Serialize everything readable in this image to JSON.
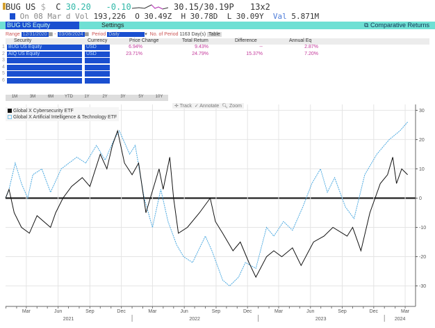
{
  "quote": {
    "ticker": "BUG US",
    "currency": "$",
    "last_label": "C",
    "last": "30.20",
    "change": "-0.10",
    "bid_ask": "30.15/30.19P",
    "size": "13x2",
    "date_line": "On 08 Mar d",
    "vol_label": "Vol",
    "vol": "193,226",
    "open": "O 30.49Z",
    "high": "H 30.78D",
    "low": "L 30.09Y",
    "val_label": "Val",
    "val": "5.871M"
  },
  "bar": {
    "security": "BUG US Equity",
    "settings": "Settings",
    "title": "Comparative Returns"
  },
  "range": {
    "label": "Range",
    "start": "12/31/2020",
    "end": "03/08/2024",
    "period_label": "Period",
    "period": "Daily",
    "num_label": "No. of Period",
    "num": "1163 Day(s)",
    "table_btn": "Table"
  },
  "table": {
    "headers": [
      "Security",
      "Currency",
      "Price Change",
      "Total Return",
      "Difference",
      "Annual Eq"
    ],
    "rows": [
      {
        "n": "1",
        "security": "BUG US Equity",
        "currency": "USD",
        "price_change": "6.94%",
        "total_return": "9.43%",
        "difference": "--",
        "annual_eq": "2.87%"
      },
      {
        "n": "2",
        "security": "AIQ US Equity",
        "currency": "USD",
        "price_change": "23.71%",
        "total_return": "24.79%",
        "difference": "15.37%",
        "annual_eq": "7.20%"
      },
      {
        "n": "3"
      },
      {
        "n": "4"
      },
      {
        "n": "5"
      },
      {
        "n": "6"
      }
    ]
  },
  "periods": [
    "1M",
    "3M",
    "6M",
    "YTD",
    "1Y",
    "2Y",
    "3Y",
    "5Y",
    "10Y"
  ],
  "tools": {
    "track": "Track",
    "annotate": "Annotate",
    "zoom": "Zoom"
  },
  "chart_data": {
    "type": "line",
    "ylim": [
      -37,
      32
    ],
    "yticks": [
      30,
      20,
      10,
      0,
      -10,
      -20,
      -30
    ],
    "xlim": [
      "2020-12-31",
      "2024-03-31"
    ],
    "xticks": [
      "Mar",
      "Jun",
      "Sep",
      "Dec",
      "Mar",
      "Jun",
      "Sep",
      "Dec",
      "Mar",
      "Jun",
      "Sep",
      "Dec",
      "Mar"
    ],
    "years": [
      "2021",
      "2022",
      "2023",
      "2024"
    ],
    "legend_position": "top-left",
    "series": [
      {
        "name": "Global X Cybersecurity ETF",
        "color": "#111111",
        "points": [
          [
            "2020-12-31",
            0
          ],
          [
            "2021-01-10",
            3
          ],
          [
            "2021-01-25",
            -5
          ],
          [
            "2021-02-15",
            -10
          ],
          [
            "2021-03-10",
            -12
          ],
          [
            "2021-04-01",
            -6
          ],
          [
            "2021-05-10",
            -10
          ],
          [
            "2021-05-25",
            -5
          ],
          [
            "2021-06-15",
            0
          ],
          [
            "2021-07-10",
            4
          ],
          [
            "2021-08-10",
            7
          ],
          [
            "2021-09-01",
            4
          ],
          [
            "2021-10-01",
            15
          ],
          [
            "2021-10-20",
            10
          ],
          [
            "2021-11-05",
            18
          ],
          [
            "2021-11-20",
            23
          ],
          [
            "2021-12-10",
            12
          ],
          [
            "2022-01-01",
            8
          ],
          [
            "2022-01-20",
            12
          ],
          [
            "2022-02-10",
            -5
          ],
          [
            "2022-03-20",
            10
          ],
          [
            "2022-04-01",
            3
          ],
          [
            "2022-04-20",
            14
          ],
          [
            "2022-05-01",
            0
          ],
          [
            "2022-05-15",
            -12
          ],
          [
            "2022-06-10",
            -10
          ],
          [
            "2022-07-15",
            -5
          ],
          [
            "2022-08-15",
            0
          ],
          [
            "2022-08-30",
            -8
          ],
          [
            "2022-09-20",
            -12
          ],
          [
            "2022-10-20",
            -18
          ],
          [
            "2022-11-10",
            -15
          ],
          [
            "2022-12-05",
            -22
          ],
          [
            "2022-12-25",
            -27
          ],
          [
            "2023-01-25",
            -20
          ],
          [
            "2023-02-15",
            -18
          ],
          [
            "2023-03-10",
            -20
          ],
          [
            "2023-04-10",
            -17
          ],
          [
            "2023-05-05",
            -23
          ],
          [
            "2023-06-10",
            -15
          ],
          [
            "2023-07-10",
            -13
          ],
          [
            "2023-08-05",
            -10
          ],
          [
            "2023-09-15",
            -13
          ],
          [
            "2023-10-01",
            -10
          ],
          [
            "2023-10-25",
            -18
          ],
          [
            "2023-11-20",
            -5
          ],
          [
            "2023-12-20",
            5
          ],
          [
            "2024-01-10",
            8
          ],
          [
            "2024-01-25",
            14
          ],
          [
            "2024-02-05",
            5
          ],
          [
            "2024-02-20",
            10
          ],
          [
            "2024-03-08",
            8
          ]
        ]
      },
      {
        "name": "Global X Artificial Intelligence & Technology ETF",
        "color": "#4aa8e0",
        "points": [
          [
            "2020-12-31",
            0
          ],
          [
            "2021-01-10",
            3
          ],
          [
            "2021-01-28",
            12
          ],
          [
            "2021-02-15",
            5
          ],
          [
            "2021-03-05",
            0
          ],
          [
            "2021-03-20",
            8
          ],
          [
            "2021-04-15",
            10
          ],
          [
            "2021-05-10",
            2
          ],
          [
            "2021-06-10",
            10
          ],
          [
            "2021-07-25",
            14
          ],
          [
            "2021-08-20",
            12
          ],
          [
            "2021-09-20",
            18
          ],
          [
            "2021-10-15",
            13
          ],
          [
            "2021-11-10",
            20
          ],
          [
            "2021-11-25",
            23
          ],
          [
            "2021-12-25",
            15
          ],
          [
            "2022-01-10",
            18
          ],
          [
            "2022-02-05",
            0
          ],
          [
            "2022-03-01",
            -10
          ],
          [
            "2022-03-25",
            3
          ],
          [
            "2022-04-15",
            -8
          ],
          [
            "2022-05-10",
            -16
          ],
          [
            "2022-05-30",
            -20
          ],
          [
            "2022-06-25",
            -22
          ],
          [
            "2022-08-01",
            -13
          ],
          [
            "2022-08-20",
            -18
          ],
          [
            "2022-09-20",
            -28
          ],
          [
            "2022-10-10",
            -30
          ],
          [
            "2022-11-05",
            -27
          ],
          [
            "2022-11-25",
            -22
          ],
          [
            "2022-12-25",
            -24
          ],
          [
            "2023-01-25",
            -10
          ],
          [
            "2023-02-15",
            -13
          ],
          [
            "2023-03-15",
            -8
          ],
          [
            "2023-04-10",
            -11
          ],
          [
            "2023-05-10",
            -3
          ],
          [
            "2023-06-05",
            5
          ],
          [
            "2023-06-30",
            10
          ],
          [
            "2023-07-20",
            2
          ],
          [
            "2023-08-10",
            7
          ],
          [
            "2023-09-10",
            -3
          ],
          [
            "2023-10-05",
            -7
          ],
          [
            "2023-11-05",
            8
          ],
          [
            "2023-12-10",
            15
          ],
          [
            "2024-01-15",
            20
          ],
          [
            "2024-02-15",
            23
          ],
          [
            "2024-03-08",
            26
          ]
        ]
      }
    ]
  }
}
